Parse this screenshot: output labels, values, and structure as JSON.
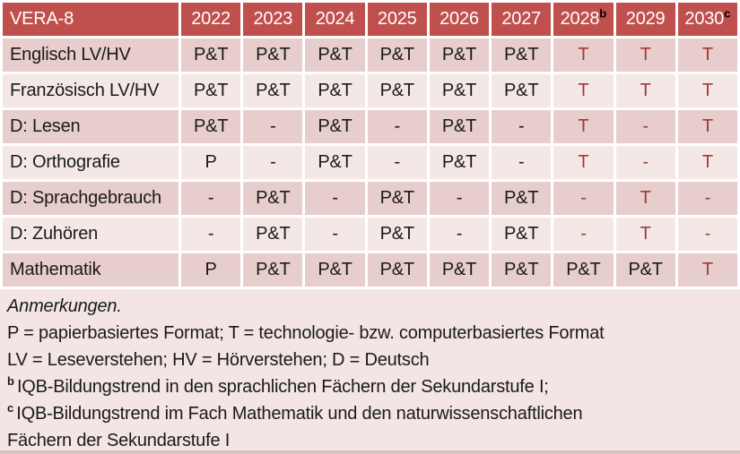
{
  "colors": {
    "header_bg": "#C0504D",
    "header_text": "#FFFFFF",
    "header_sup_text": "#000000",
    "band_dark": "#E7CDCB",
    "band_light": "#F4E8E7",
    "notes_bg": "#F2E5E4",
    "value_highlight": "#9E3A38",
    "text": "#1A1A1A",
    "grid_gap": "#FFFFFF"
  },
  "table": {
    "title": "VERA-8",
    "columns": [
      {
        "label": "2022",
        "sup": ""
      },
      {
        "label": "2023",
        "sup": ""
      },
      {
        "label": "2024",
        "sup": ""
      },
      {
        "label": "2025",
        "sup": ""
      },
      {
        "label": "2026",
        "sup": ""
      },
      {
        "label": "2027",
        "sup": ""
      },
      {
        "label": "2028",
        "sup": "b"
      },
      {
        "label": "2029",
        "sup": ""
      },
      {
        "label": "2030",
        "sup": "c"
      }
    ],
    "rows": [
      {
        "label": "Englisch LV/HV",
        "band": "dark",
        "cells": [
          {
            "text": "P&T",
            "highlight": false
          },
          {
            "text": "P&T",
            "highlight": false
          },
          {
            "text": "P&T",
            "highlight": false
          },
          {
            "text": "P&T",
            "highlight": false
          },
          {
            "text": "P&T",
            "highlight": false
          },
          {
            "text": "P&T",
            "highlight": false
          },
          {
            "text": "T",
            "highlight": true
          },
          {
            "text": "T",
            "highlight": true
          },
          {
            "text": "T",
            "highlight": true
          }
        ]
      },
      {
        "label": "Französisch LV/HV",
        "band": "light",
        "cells": [
          {
            "text": "P&T",
            "highlight": false
          },
          {
            "text": "P&T",
            "highlight": false
          },
          {
            "text": "P&T",
            "highlight": false
          },
          {
            "text": "P&T",
            "highlight": false
          },
          {
            "text": "P&T",
            "highlight": false
          },
          {
            "text": "P&T",
            "highlight": false
          },
          {
            "text": "T",
            "highlight": true
          },
          {
            "text": "T",
            "highlight": true
          },
          {
            "text": "T",
            "highlight": true
          }
        ]
      },
      {
        "label": "D: Lesen",
        "band": "dark",
        "cells": [
          {
            "text": "P&T",
            "highlight": false
          },
          {
            "text": "-",
            "highlight": false
          },
          {
            "text": "P&T",
            "highlight": false
          },
          {
            "text": "-",
            "highlight": false
          },
          {
            "text": "P&T",
            "highlight": false
          },
          {
            "text": "-",
            "highlight": false
          },
          {
            "text": "T",
            "highlight": true
          },
          {
            "text": "-",
            "highlight": true
          },
          {
            "text": "T",
            "highlight": true
          }
        ]
      },
      {
        "label": "D: Orthografie",
        "band": "light",
        "cells": [
          {
            "text": "P",
            "highlight": false
          },
          {
            "text": "-",
            "highlight": false
          },
          {
            "text": "P&T",
            "highlight": false
          },
          {
            "text": "-",
            "highlight": false
          },
          {
            "text": "P&T",
            "highlight": false
          },
          {
            "text": "-",
            "highlight": false
          },
          {
            "text": "T",
            "highlight": true
          },
          {
            "text": "-",
            "highlight": true
          },
          {
            "text": "T",
            "highlight": true
          }
        ]
      },
      {
        "label": "D: Sprachgebrauch",
        "band": "dark",
        "cells": [
          {
            "text": "-",
            "highlight": false
          },
          {
            "text": "P&T",
            "highlight": false
          },
          {
            "text": "-",
            "highlight": false
          },
          {
            "text": "P&T",
            "highlight": false
          },
          {
            "text": "-",
            "highlight": false
          },
          {
            "text": "P&T",
            "highlight": false
          },
          {
            "text": "-",
            "highlight": true
          },
          {
            "text": "T",
            "highlight": true
          },
          {
            "text": "-",
            "highlight": true
          }
        ]
      },
      {
        "label": "D: Zuhören",
        "band": "light",
        "cells": [
          {
            "text": "-",
            "highlight": false
          },
          {
            "text": "P&T",
            "highlight": false
          },
          {
            "text": "-",
            "highlight": false
          },
          {
            "text": "P&T",
            "highlight": false
          },
          {
            "text": "-",
            "highlight": false
          },
          {
            "text": "P&T",
            "highlight": false
          },
          {
            "text": "-",
            "highlight": true
          },
          {
            "text": "T",
            "highlight": true
          },
          {
            "text": "-",
            "highlight": true
          }
        ]
      },
      {
        "label": "Mathematik",
        "band": "dark",
        "cells": [
          {
            "text": "P",
            "highlight": false
          },
          {
            "text": "P&T",
            "highlight": false
          },
          {
            "text": "P&T",
            "highlight": false
          },
          {
            "text": "P&T",
            "highlight": false
          },
          {
            "text": "P&T",
            "highlight": false
          },
          {
            "text": "P&T",
            "highlight": false
          },
          {
            "text": "P&T",
            "highlight": false
          },
          {
            "text": "P&T",
            "highlight": false
          },
          {
            "text": "T",
            "highlight": true
          }
        ]
      }
    ]
  },
  "notes": {
    "lines": [
      {
        "text": "Anmerkungen.",
        "italic": true,
        "sup": ""
      },
      {
        "text": "P = papierbasiertes Format; T = technologie- bzw. computerbasiertes Format",
        "italic": false,
        "sup": ""
      },
      {
        "text": "LV = Leseverstehen; HV = Hörverstehen; D = Deutsch",
        "italic": false,
        "sup": ""
      },
      {
        "text": "IQB-Bildungstrend in den sprachlichen Fächern der Sekundarstufe I;",
        "italic": false,
        "sup": "b"
      },
      {
        "text": "IQB-Bildungstrend im Fach Mathematik und den naturwissenschaftlichen",
        "italic": false,
        "sup": "c"
      },
      {
        "text": "Fächern der Sekundarstufe I",
        "italic": false,
        "sup": ""
      }
    ]
  }
}
